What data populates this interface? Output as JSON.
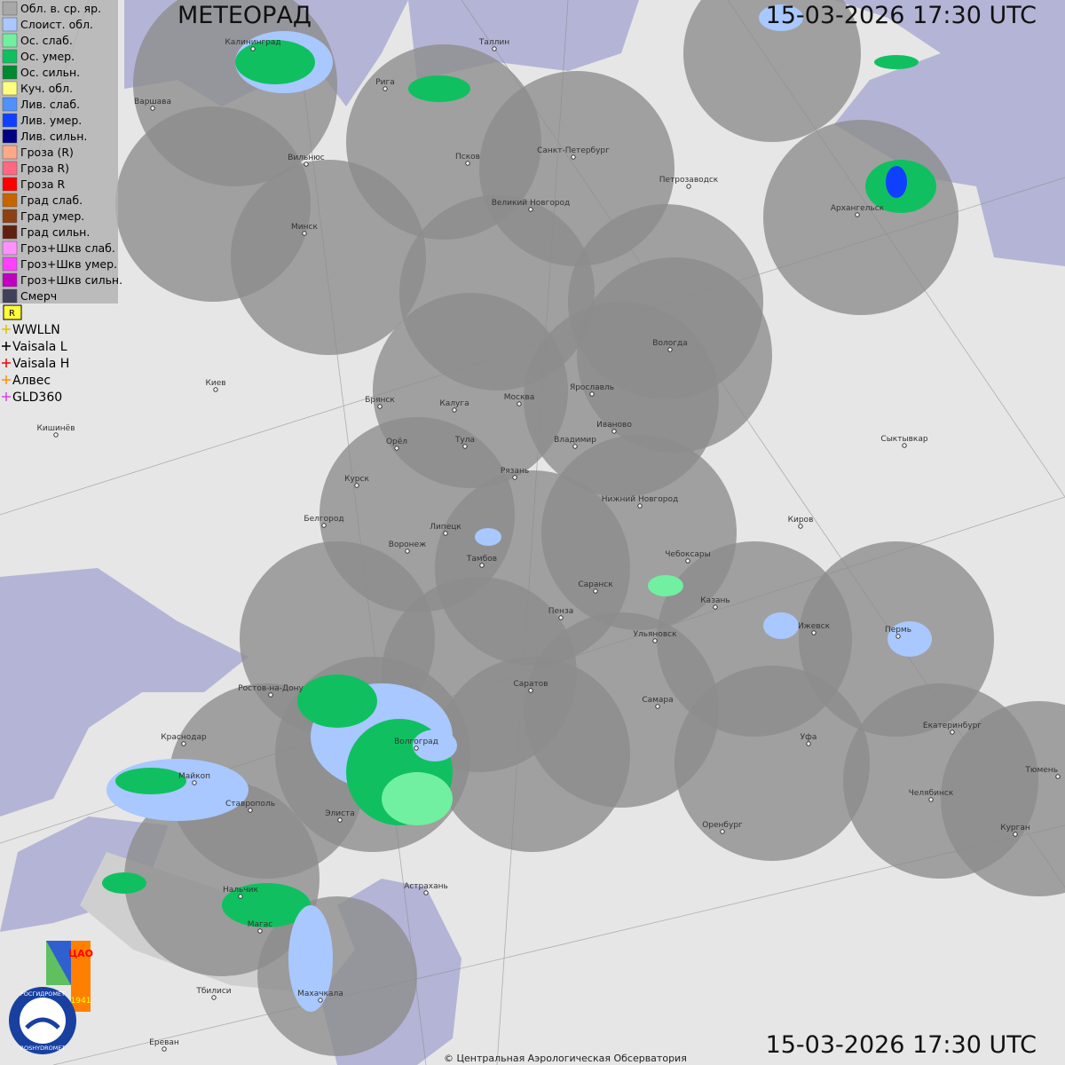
{
  "header": {
    "title": "МЕТЕОРАД",
    "timestamp_top": "15-03-2026  17:30 UTC",
    "timestamp_bottom": "15-03-2026  17:30 UTC"
  },
  "legend": [
    {
      "label": "Обл. в. ср. яр.",
      "color": "#a8a8a8"
    },
    {
      "label": "Слоист. обл.",
      "color": "#a8c8ff"
    },
    {
      "label": "Ос. слаб.",
      "color": "#70f0a0"
    },
    {
      "label": "Ос. умер.",
      "color": "#10c060"
    },
    {
      "label": "Ос. сильн.",
      "color": "#008a30"
    },
    {
      "label": "Куч. обл.",
      "color": "#ffff80"
    },
    {
      "label": "Лив. слаб.",
      "color": "#5090ff"
    },
    {
      "label": "Лив. умер.",
      "color": "#1040ff"
    },
    {
      "label": "Лив. сильн.",
      "color": "#000080"
    },
    {
      "label": "Гроза (R)",
      "color": "#ffa888"
    },
    {
      "label": "Гроза R)",
      "color": "#ff6880"
    },
    {
      "label": "Гроза R",
      "color": "#ff0000"
    },
    {
      "label": "Град слаб.",
      "color": "#c86400"
    },
    {
      "label": "Град умер.",
      "color": "#8c4014"
    },
    {
      "label": "Град сильн.",
      "color": "#602010"
    },
    {
      "label": "Гроз+Шкв слаб.",
      "color": "#ff90ff"
    },
    {
      "label": "Гроз+Шкв умер.",
      "color": "#ff40ff"
    },
    {
      "label": "Гроз+Шкв сильн.",
      "color": "#c000c0"
    },
    {
      "label": "Смерч",
      "color": "#404058"
    }
  ],
  "lightning": [
    {
      "label": "WWLLN",
      "color": "#e0c000"
    },
    {
      "label": "Vaisala L",
      "color": "#000000"
    },
    {
      "label": "Vaisala H",
      "color": "#ff0000"
    },
    {
      "label": "Алвес",
      "color": "#ff9000"
    },
    {
      "label": "GLD360",
      "color": "#e040e0"
    }
  ],
  "cities": [
    "Калининград",
    "Таллин",
    "Рига",
    "Варшава",
    "Вильнюс",
    "Псков",
    "Санкт-Петербург",
    "Петрозаводск",
    "Архангельск",
    "Великий Новгород",
    "Минск",
    "Вологда",
    "Киев",
    "Брянск",
    "Калуга",
    "Москва",
    "Ярославль",
    "Иваново",
    "Кишинёв",
    "Орёл",
    "Тула",
    "Владимир",
    "Сыктывкар",
    "Курск",
    "Рязань",
    "Нижний Новгород",
    "Киров",
    "Белгород",
    "Липецк",
    "Воронеж",
    "Тамбов",
    "Чебоксары",
    "Саранск",
    "Казань",
    "Пенза",
    "Ижевск",
    "Пермь",
    "Ульяновск",
    "Саратов",
    "Ростов-на-Дону",
    "Самара",
    "Екатеринбург",
    "Краснодар",
    "Волгоград",
    "Уфа",
    "Тюмень",
    "Майкоп",
    "Челябинск",
    "Ставрополь",
    "Элиста",
    "Оренбург",
    "Курган",
    "Астрахань",
    "Нальчик",
    "Магас",
    "Тбилиси",
    "Махачкала",
    "Ереван"
  ],
  "logo": {
    "name_ru": "РОСГИДРОМЕТ",
    "name_en": "ROSHYDROMET",
    "org": "ЦАО",
    "year": "1941"
  },
  "footer": {
    "copyright": "© Центральная Аэрологическая Обсерватория"
  }
}
